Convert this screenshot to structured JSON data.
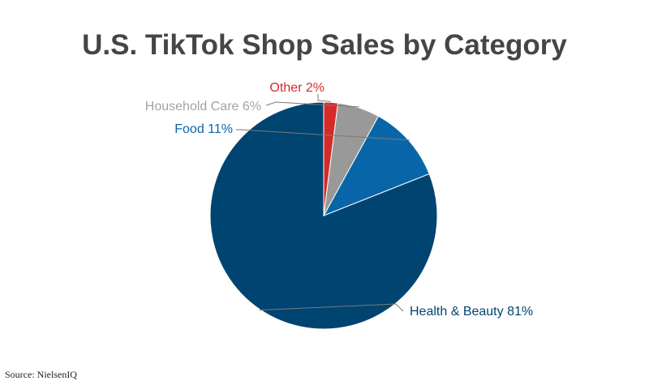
{
  "chart_data": {
    "type": "pie",
    "title": "U.S. TikTok Shop Sales by Category",
    "slices": [
      {
        "label": "Health & Beauty 81%",
        "category": "Health & Beauty",
        "value": 81,
        "color": "#004471"
      },
      {
        "label": "Food 11%",
        "category": "Food",
        "value": 11,
        "color": "#0866a8"
      },
      {
        "label": "Household Care 6%",
        "category": "Household Care",
        "value": 6,
        "color": "#999999"
      },
      {
        "label": "Other 2%",
        "category": "Other",
        "value": 2,
        "color": "#d62a2a"
      }
    ],
    "label_colors": {
      "Health & Beauty": "#004471",
      "Food": "#0866a8",
      "Household Care": "#a3a3a3",
      "Other": "#d62a2a"
    },
    "start_angle_deg": 0,
    "direction": "counterclockwise"
  },
  "source": "Source: NielsenIQ"
}
